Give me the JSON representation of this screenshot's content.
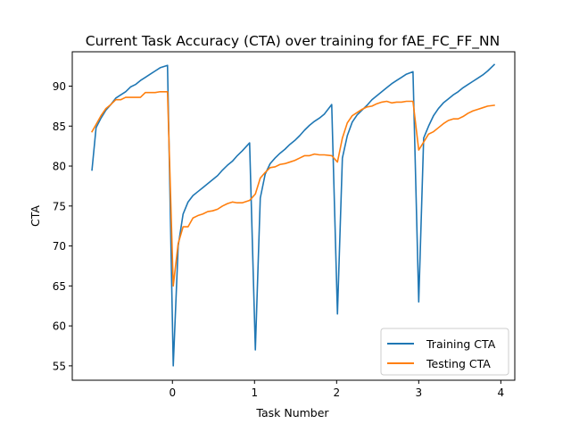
{
  "chart_data": {
    "type": "line",
    "title": "Current Task Accuracy (CTA) over training for fAE_FC_FF_NN",
    "xlabel": "Task Number",
    "ylabel": "CTA",
    "xlim": [
      -1.22,
      4.17
    ],
    "ylim": [
      53.2,
      94.3
    ],
    "xticks": [
      0,
      1,
      2,
      3,
      4
    ],
    "xtick_labels": [
      "0",
      "1",
      "2",
      "3",
      "4"
    ],
    "yticks": [
      55,
      60,
      65,
      70,
      75,
      80,
      85,
      90
    ],
    "ytick_labels": [
      "55",
      "60",
      "65",
      "70",
      "75",
      "80",
      "85",
      "90"
    ],
    "grid": false,
    "legend_position": "lower right",
    "series": [
      {
        "name": "Training CTA",
        "color": "#1f77b4",
        "points": [
          [
            -0.98,
            79.5
          ],
          [
            -0.93,
            84.8
          ],
          [
            -0.87,
            86.0
          ],
          [
            -0.81,
            87.0
          ],
          [
            -0.75,
            87.7
          ],
          [
            -0.69,
            88.5
          ],
          [
            -0.63,
            88.9
          ],
          [
            -0.57,
            89.3
          ],
          [
            -0.51,
            89.9
          ],
          [
            -0.45,
            90.2
          ],
          [
            -0.39,
            90.7
          ],
          [
            -0.33,
            91.1
          ],
          [
            -0.27,
            91.5
          ],
          [
            -0.21,
            91.9
          ],
          [
            -0.15,
            92.3
          ],
          [
            -0.06,
            92.6
          ],
          [
            0.01,
            55.0
          ],
          [
            0.07,
            70.0
          ],
          [
            0.13,
            74.0
          ],
          [
            0.19,
            75.5
          ],
          [
            0.25,
            76.3
          ],
          [
            0.31,
            76.8
          ],
          [
            0.37,
            77.3
          ],
          [
            0.43,
            77.8
          ],
          [
            0.49,
            78.3
          ],
          [
            0.55,
            78.8
          ],
          [
            0.61,
            79.5
          ],
          [
            0.67,
            80.1
          ],
          [
            0.73,
            80.6
          ],
          [
            0.79,
            81.3
          ],
          [
            0.85,
            81.9
          ],
          [
            0.94,
            82.9
          ],
          [
            1.01,
            57.0
          ],
          [
            1.07,
            76.0
          ],
          [
            1.13,
            79.0
          ],
          [
            1.19,
            80.3
          ],
          [
            1.25,
            81.0
          ],
          [
            1.31,
            81.6
          ],
          [
            1.37,
            82.1
          ],
          [
            1.43,
            82.7
          ],
          [
            1.49,
            83.2
          ],
          [
            1.55,
            83.8
          ],
          [
            1.61,
            84.5
          ],
          [
            1.67,
            85.1
          ],
          [
            1.73,
            85.6
          ],
          [
            1.79,
            86.0
          ],
          [
            1.85,
            86.5
          ],
          [
            1.94,
            87.7
          ],
          [
            2.01,
            61.5
          ],
          [
            2.07,
            81.0
          ],
          [
            2.13,
            83.8
          ],
          [
            2.19,
            85.5
          ],
          [
            2.25,
            86.4
          ],
          [
            2.31,
            87.0
          ],
          [
            2.37,
            87.6
          ],
          [
            2.43,
            88.3
          ],
          [
            2.49,
            88.8
          ],
          [
            2.55,
            89.3
          ],
          [
            2.61,
            89.8
          ],
          [
            2.67,
            90.3
          ],
          [
            2.73,
            90.7
          ],
          [
            2.79,
            91.1
          ],
          [
            2.85,
            91.5
          ],
          [
            2.93,
            91.8
          ],
          [
            3.0,
            63.0
          ],
          [
            3.06,
            83.5
          ],
          [
            3.12,
            85.0
          ],
          [
            3.18,
            86.3
          ],
          [
            3.24,
            87.2
          ],
          [
            3.3,
            87.9
          ],
          [
            3.36,
            88.4
          ],
          [
            3.42,
            88.9
          ],
          [
            3.48,
            89.3
          ],
          [
            3.54,
            89.8
          ],
          [
            3.6,
            90.2
          ],
          [
            3.66,
            90.6
          ],
          [
            3.72,
            91.0
          ],
          [
            3.78,
            91.4
          ],
          [
            3.84,
            91.9
          ],
          [
            3.92,
            92.7
          ]
        ]
      },
      {
        "name": "Testing CTA",
        "color": "#ff7f0e",
        "points": [
          [
            -0.98,
            84.3
          ],
          [
            -0.93,
            85.2
          ],
          [
            -0.87,
            86.3
          ],
          [
            -0.81,
            87.2
          ],
          [
            -0.75,
            87.7
          ],
          [
            -0.69,
            88.3
          ],
          [
            -0.63,
            88.3
          ],
          [
            -0.57,
            88.6
          ],
          [
            -0.51,
            88.6
          ],
          [
            -0.45,
            88.6
          ],
          [
            -0.39,
            88.6
          ],
          [
            -0.33,
            89.2
          ],
          [
            -0.27,
            89.2
          ],
          [
            -0.21,
            89.2
          ],
          [
            -0.15,
            89.3
          ],
          [
            -0.06,
            89.3
          ],
          [
            0.01,
            65.0
          ],
          [
            0.07,
            70.3
          ],
          [
            0.13,
            72.4
          ],
          [
            0.19,
            72.4
          ],
          [
            0.25,
            73.5
          ],
          [
            0.31,
            73.8
          ],
          [
            0.37,
            74.0
          ],
          [
            0.43,
            74.3
          ],
          [
            0.49,
            74.4
          ],
          [
            0.55,
            74.6
          ],
          [
            0.61,
            75.0
          ],
          [
            0.67,
            75.3
          ],
          [
            0.73,
            75.5
          ],
          [
            0.79,
            75.4
          ],
          [
            0.85,
            75.4
          ],
          [
            0.94,
            75.7
          ],
          [
            1.01,
            76.5
          ],
          [
            1.07,
            78.5
          ],
          [
            1.13,
            79.2
          ],
          [
            1.19,
            79.8
          ],
          [
            1.25,
            79.9
          ],
          [
            1.31,
            80.2
          ],
          [
            1.37,
            80.3
          ],
          [
            1.43,
            80.5
          ],
          [
            1.49,
            80.7
          ],
          [
            1.55,
            81.0
          ],
          [
            1.61,
            81.3
          ],
          [
            1.67,
            81.3
          ],
          [
            1.73,
            81.5
          ],
          [
            1.79,
            81.4
          ],
          [
            1.85,
            81.4
          ],
          [
            1.94,
            81.3
          ],
          [
            2.01,
            80.5
          ],
          [
            2.07,
            83.5
          ],
          [
            2.13,
            85.4
          ],
          [
            2.19,
            86.3
          ],
          [
            2.25,
            86.7
          ],
          [
            2.31,
            87.1
          ],
          [
            2.37,
            87.4
          ],
          [
            2.43,
            87.5
          ],
          [
            2.49,
            87.8
          ],
          [
            2.55,
            88.0
          ],
          [
            2.61,
            88.1
          ],
          [
            2.67,
            87.9
          ],
          [
            2.73,
            88.0
          ],
          [
            2.79,
            88.0
          ],
          [
            2.85,
            88.1
          ],
          [
            2.93,
            88.1
          ],
          [
            3.0,
            82.0
          ],
          [
            3.06,
            83.0
          ],
          [
            3.12,
            84.0
          ],
          [
            3.18,
            84.3
          ],
          [
            3.24,
            84.8
          ],
          [
            3.3,
            85.3
          ],
          [
            3.36,
            85.7
          ],
          [
            3.42,
            85.9
          ],
          [
            3.48,
            85.9
          ],
          [
            3.54,
            86.2
          ],
          [
            3.6,
            86.6
          ],
          [
            3.66,
            86.9
          ],
          [
            3.72,
            87.1
          ],
          [
            3.78,
            87.3
          ],
          [
            3.84,
            87.5
          ],
          [
            3.92,
            87.6
          ]
        ]
      }
    ]
  }
}
